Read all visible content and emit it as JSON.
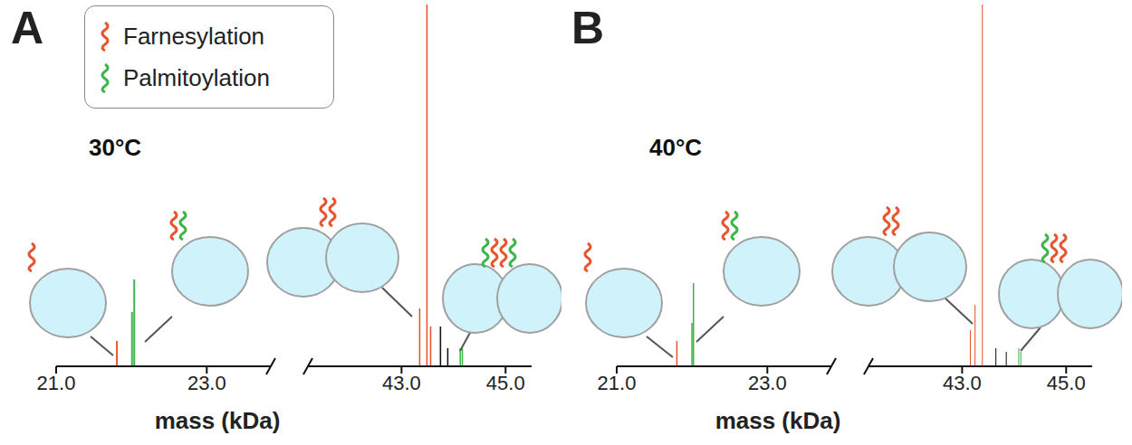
{
  "chart_data": [
    {
      "type": "bar",
      "label": "A",
      "title": "30°C",
      "x_label": "mass (kDa)",
      "legend": "top left",
      "tick_labels": "x",
      "ylim": [
        0,
        100
      ],
      "segments": [
        {
          "xlim": [
            21.0,
            23.85
          ],
          "xticks": [
            {
              "value": 21,
              "label": "21.0"
            },
            {
              "value": 23,
              "label": "23.0"
            }
          ]
        },
        {
          "xlim": [
            41.2,
            45.5
          ],
          "xticks": [
            {
              "value": 43,
              "label": "43.0"
            },
            {
              "value": 45,
              "label": "45.0"
            }
          ]
        }
      ],
      "series": [
        {
          "name": "Farnesylation",
          "color": "#e8542b",
          "x": [
            21.81,
            43.35,
            43.49,
            43.56
          ],
          "values": [
            7,
            16,
            100,
            11
          ]
        },
        {
          "name": "Palmitoylation",
          "color": "#3db54a",
          "x": [
            22.01,
            22.04,
            44.13,
            44.17
          ],
          "values": [
            15,
            24,
            5,
            5
          ]
        },
        {
          "color": "#111111",
          "x": [
            43.75,
            43.89
          ],
          "values": [
            11,
            5
          ]
        }
      ]
    },
    {
      "type": "bar",
      "label": "B",
      "title": "40°C",
      "x_label": "mass (kDa)",
      "tick_labels": "x",
      "ylim": [
        0,
        100
      ],
      "segments": [
        {
          "xlim": [
            21.0,
            23.85
          ],
          "xticks": [
            {
              "value": 21,
              "label": "21.0"
            },
            {
              "value": 23,
              "label": "23.0"
            }
          ]
        },
        {
          "xlim": [
            41.2,
            45.5
          ],
          "xticks": [
            {
              "value": 43,
              "label": "43.0"
            },
            {
              "value": 45,
              "label": "45.0"
            }
          ]
        }
      ],
      "series": [
        {
          "name": "Farnesylation",
          "color": "#e8542b",
          "x": [
            21.8,
            43.16,
            43.25,
            43.39
          ],
          "values": [
            7,
            10,
            17,
            100
          ]
        },
        {
          "name": "Palmitoylation",
          "color": "#3db54a",
          "x": [
            22.0,
            22.02,
            44.09,
            44.13
          ],
          "values": [
            12,
            23,
            5,
            4
          ]
        },
        {
          "color": "#111111",
          "x": [
            43.65,
            43.85
          ],
          "values": [
            5,
            4
          ]
        }
      ]
    }
  ]
}
